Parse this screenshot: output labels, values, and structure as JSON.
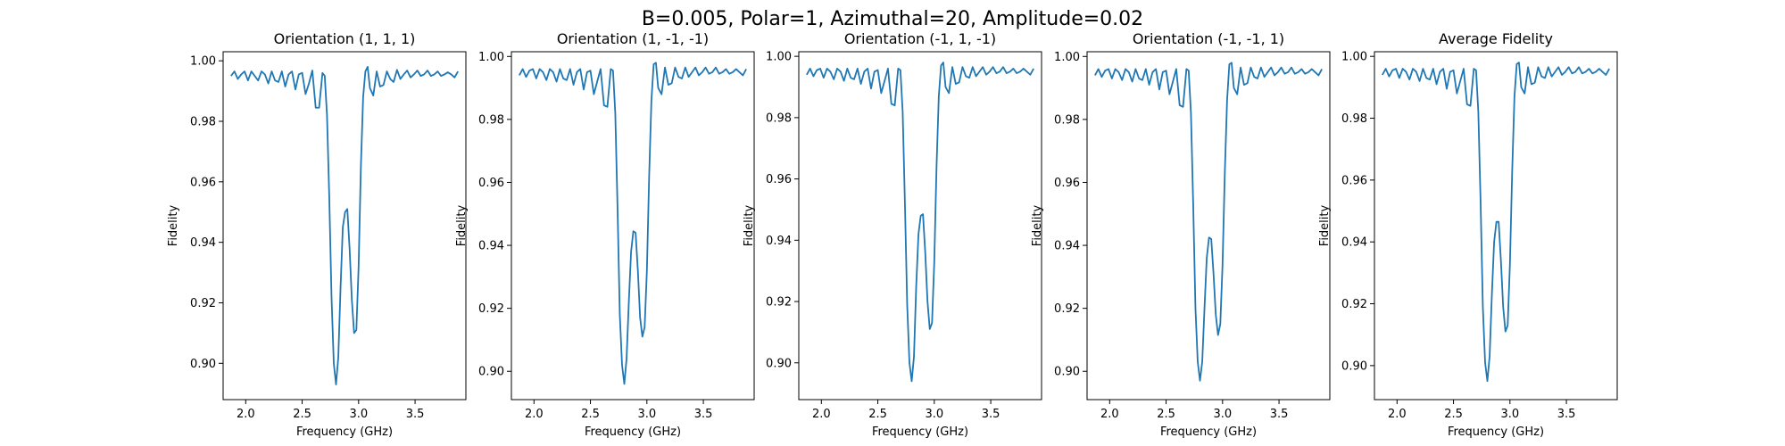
{
  "figure": {
    "suptitle": "B=0.005, Polar=1, Azimuthal=20, Amplitude=0.02"
  },
  "chart_data": [
    {
      "type": "line",
      "title": "Orientation (1, 1, 1)",
      "xlabel": "Frequency (GHz)",
      "ylabel": "Fidelity",
      "xlim": [
        1.8,
        3.95
      ],
      "ylim": [
        0.888,
        1.003
      ],
      "xticks": [
        2.0,
        2.5,
        3.0,
        3.5
      ],
      "xtick_labels": [
        "2.0",
        "2.5",
        "3.0",
        "3.5"
      ],
      "yticks": [
        0.9,
        0.92,
        0.94,
        0.96,
        0.98,
        1.0
      ],
      "ytick_labels": [
        "0.90",
        "0.92",
        "0.94",
        "0.96",
        "0.98",
        "1.00"
      ],
      "grid": false,
      "color": "#1f77b4",
      "series": [
        {
          "x": [
            1.87,
            1.9,
            1.93,
            1.96,
            1.99,
            2.02,
            2.05,
            2.08,
            2.11,
            2.14,
            2.17,
            2.2,
            2.23,
            2.26,
            2.29,
            2.32,
            2.35,
            2.38,
            2.41,
            2.44,
            2.47,
            2.5,
            2.53,
            2.56,
            2.59,
            2.62,
            2.65,
            2.68,
            2.7,
            2.72,
            2.74,
            2.76,
            2.78,
            2.8,
            2.82,
            2.84,
            2.86,
            2.88,
            2.9,
            2.92,
            2.94,
            2.96,
            2.98,
            3.0,
            3.02,
            3.04,
            3.06,
            3.08,
            3.1,
            3.13,
            3.16,
            3.19,
            3.22,
            3.25,
            3.28,
            3.31,
            3.34,
            3.37,
            3.4,
            3.43,
            3.46,
            3.49,
            3.52,
            3.55,
            3.58,
            3.61,
            3.64,
            3.67,
            3.7,
            3.73,
            3.76,
            3.79,
            3.82,
            3.85,
            3.88
          ],
          "y": [
            0.995,
            0.9965,
            0.994,
            0.9955,
            0.9965,
            0.9935,
            0.9965,
            0.995,
            0.9935,
            0.9965,
            0.9955,
            0.9925,
            0.9965,
            0.9935,
            0.993,
            0.9965,
            0.9915,
            0.9955,
            0.9965,
            0.9905,
            0.9955,
            0.996,
            0.989,
            0.9925,
            0.9968,
            0.9845,
            0.9845,
            0.996,
            0.995,
            0.982,
            0.955,
            0.922,
            0.9,
            0.893,
            0.902,
            0.925,
            0.945,
            0.95,
            0.951,
            0.938,
            0.921,
            0.91,
            0.911,
            0.932,
            0.965,
            0.988,
            0.9965,
            0.998,
            0.991,
            0.9885,
            0.9965,
            0.9915,
            0.992,
            0.9965,
            0.994,
            0.993,
            0.997,
            0.994,
            0.9955,
            0.9968,
            0.9945,
            0.9955,
            0.9968,
            0.995,
            0.9955,
            0.9968,
            0.995,
            0.9955,
            0.9965,
            0.995,
            0.9955,
            0.9962,
            0.9955,
            0.9945,
            0.9965
          ]
        }
      ]
    },
    {
      "type": "line",
      "title": "Orientation (1, -1, -1)",
      "xlabel": "Frequency (GHz)",
      "ylabel": "Fidelity",
      "xlim": [
        1.8,
        3.95
      ],
      "ylim": [
        0.891,
        1.0015
      ],
      "xticks": [
        2.0,
        2.5,
        3.0,
        3.5
      ],
      "xtick_labels": [
        "2.0",
        "2.5",
        "3.0",
        "3.5"
      ],
      "yticks": [
        0.9,
        0.92,
        0.94,
        0.96,
        0.98,
        1.0
      ],
      "ytick_labels": [
        "0.90",
        "0.92",
        "0.94",
        "0.96",
        "0.98",
        "1.00"
      ],
      "grid": false,
      "color": "#1f77b4",
      "series": [
        {
          "x": [
            1.87,
            1.9,
            1.93,
            1.96,
            1.99,
            2.02,
            2.05,
            2.08,
            2.11,
            2.14,
            2.17,
            2.2,
            2.23,
            2.26,
            2.29,
            2.32,
            2.35,
            2.38,
            2.41,
            2.44,
            2.47,
            2.5,
            2.53,
            2.56,
            2.59,
            2.62,
            2.65,
            2.68,
            2.7,
            2.72,
            2.74,
            2.76,
            2.78,
            2.8,
            2.82,
            2.84,
            2.86,
            2.88,
            2.9,
            2.92,
            2.94,
            2.96,
            2.98,
            3.0,
            3.02,
            3.04,
            3.06,
            3.08,
            3.1,
            3.13,
            3.16,
            3.19,
            3.22,
            3.25,
            3.28,
            3.31,
            3.34,
            3.37,
            3.4,
            3.43,
            3.46,
            3.49,
            3.52,
            3.55,
            3.58,
            3.61,
            3.64,
            3.67,
            3.7,
            3.73,
            3.76,
            3.79,
            3.82,
            3.85,
            3.88
          ],
          "y": [
            0.994,
            0.996,
            0.9935,
            0.9955,
            0.996,
            0.993,
            0.996,
            0.995,
            0.9925,
            0.996,
            0.995,
            0.992,
            0.996,
            0.993,
            0.9925,
            0.996,
            0.991,
            0.995,
            0.996,
            0.9895,
            0.995,
            0.9955,
            0.988,
            0.992,
            0.996,
            0.9845,
            0.984,
            0.996,
            0.9955,
            0.982,
            0.952,
            0.918,
            0.902,
            0.896,
            0.904,
            0.922,
            0.938,
            0.9445,
            0.944,
            0.932,
            0.917,
            0.911,
            0.914,
            0.932,
            0.962,
            0.986,
            0.9975,
            0.998,
            0.99,
            0.988,
            0.9965,
            0.991,
            0.9915,
            0.9965,
            0.9935,
            0.993,
            0.9965,
            0.9935,
            0.995,
            0.9965,
            0.994,
            0.995,
            0.9965,
            0.9945,
            0.995,
            0.9965,
            0.9945,
            0.995,
            0.996,
            0.9945,
            0.995,
            0.996,
            0.995,
            0.994,
            0.996
          ]
        }
      ]
    },
    {
      "type": "line",
      "title": "Orientation (-1, 1, -1)",
      "xlabel": "Frequency (GHz)",
      "ylabel": "Fidelity",
      "xlim": [
        1.8,
        3.95
      ],
      "ylim": [
        0.888,
        1.0015
      ],
      "xticks": [
        2.0,
        2.5,
        3.0,
        3.5
      ],
      "xtick_labels": [
        "2.0",
        "2.5",
        "3.0",
        "3.5"
      ],
      "yticks": [
        0.9,
        0.92,
        0.94,
        0.96,
        0.98,
        1.0
      ],
      "ytick_labels": [
        "0.90",
        "0.92",
        "0.94",
        "0.96",
        "0.98",
        "1.00"
      ],
      "grid": false,
      "color": "#1f77b4",
      "series": [
        {
          "x": [
            1.87,
            1.9,
            1.93,
            1.96,
            1.99,
            2.02,
            2.05,
            2.08,
            2.11,
            2.14,
            2.17,
            2.2,
            2.23,
            2.26,
            2.29,
            2.32,
            2.35,
            2.38,
            2.41,
            2.44,
            2.47,
            2.5,
            2.53,
            2.56,
            2.59,
            2.62,
            2.65,
            2.68,
            2.7,
            2.72,
            2.74,
            2.76,
            2.78,
            2.8,
            2.82,
            2.84,
            2.86,
            2.88,
            2.9,
            2.92,
            2.94,
            2.96,
            2.98,
            3.0,
            3.02,
            3.04,
            3.06,
            3.08,
            3.1,
            3.13,
            3.16,
            3.19,
            3.22,
            3.25,
            3.28,
            3.31,
            3.34,
            3.37,
            3.4,
            3.43,
            3.46,
            3.49,
            3.52,
            3.55,
            3.58,
            3.61,
            3.64,
            3.67,
            3.7,
            3.73,
            3.76,
            3.79,
            3.82,
            3.85,
            3.88
          ],
          "y": [
            0.994,
            0.996,
            0.9935,
            0.9955,
            0.996,
            0.993,
            0.996,
            0.995,
            0.9925,
            0.996,
            0.995,
            0.992,
            0.996,
            0.993,
            0.9925,
            0.996,
            0.991,
            0.995,
            0.996,
            0.9895,
            0.995,
            0.9955,
            0.988,
            0.992,
            0.996,
            0.9845,
            0.984,
            0.996,
            0.9955,
            0.982,
            0.952,
            0.919,
            0.9,
            0.894,
            0.902,
            0.925,
            0.942,
            0.948,
            0.9485,
            0.936,
            0.92,
            0.911,
            0.913,
            0.933,
            0.964,
            0.987,
            0.997,
            0.998,
            0.99,
            0.988,
            0.9965,
            0.991,
            0.9915,
            0.9965,
            0.9935,
            0.993,
            0.9965,
            0.9935,
            0.995,
            0.9965,
            0.994,
            0.995,
            0.9965,
            0.9945,
            0.995,
            0.9965,
            0.9945,
            0.995,
            0.996,
            0.9945,
            0.995,
            0.996,
            0.995,
            0.994,
            0.996
          ]
        }
      ]
    },
    {
      "type": "line",
      "title": "Orientation (-1, -1, 1)",
      "xlabel": "Frequency (GHz)",
      "ylabel": "Fidelity",
      "xlim": [
        1.8,
        3.95
      ],
      "ylim": [
        0.891,
        1.0015
      ],
      "xticks": [
        2.0,
        2.5,
        3.0,
        3.5
      ],
      "xtick_labels": [
        "2.0",
        "2.5",
        "3.0",
        "3.5"
      ],
      "yticks": [
        0.9,
        0.92,
        0.94,
        0.96,
        0.98,
        1.0
      ],
      "ytick_labels": [
        "0.90",
        "0.92",
        "0.94",
        "0.96",
        "0.98",
        "1.00"
      ],
      "grid": false,
      "color": "#1f77b4",
      "series": [
        {
          "x": [
            1.87,
            1.9,
            1.93,
            1.96,
            1.99,
            2.02,
            2.05,
            2.08,
            2.11,
            2.14,
            2.17,
            2.2,
            2.23,
            2.26,
            2.29,
            2.32,
            2.35,
            2.38,
            2.41,
            2.44,
            2.47,
            2.5,
            2.53,
            2.56,
            2.59,
            2.62,
            2.65,
            2.68,
            2.7,
            2.72,
            2.74,
            2.76,
            2.78,
            2.8,
            2.82,
            2.84,
            2.86,
            2.88,
            2.9,
            2.92,
            2.94,
            2.96,
            2.98,
            3.0,
            3.02,
            3.04,
            3.06,
            3.08,
            3.1,
            3.13,
            3.16,
            3.19,
            3.22,
            3.25,
            3.28,
            3.31,
            3.34,
            3.37,
            3.4,
            3.43,
            3.46,
            3.49,
            3.52,
            3.55,
            3.58,
            3.61,
            3.64,
            3.67,
            3.7,
            3.73,
            3.76,
            3.79,
            3.82,
            3.85,
            3.88
          ],
          "y": [
            0.994,
            0.996,
            0.9935,
            0.9955,
            0.996,
            0.993,
            0.996,
            0.995,
            0.9925,
            0.996,
            0.995,
            0.992,
            0.996,
            0.993,
            0.9925,
            0.996,
            0.991,
            0.995,
            0.996,
            0.9895,
            0.995,
            0.9955,
            0.988,
            0.992,
            0.996,
            0.9845,
            0.984,
            0.996,
            0.9955,
            0.982,
            0.953,
            0.92,
            0.903,
            0.897,
            0.903,
            0.92,
            0.936,
            0.9425,
            0.942,
            0.931,
            0.918,
            0.9115,
            0.915,
            0.934,
            0.963,
            0.986,
            0.9975,
            0.998,
            0.99,
            0.988,
            0.9965,
            0.991,
            0.9915,
            0.9965,
            0.9935,
            0.993,
            0.9965,
            0.9935,
            0.995,
            0.9965,
            0.994,
            0.995,
            0.9965,
            0.9945,
            0.995,
            0.9965,
            0.9945,
            0.995,
            0.996,
            0.9945,
            0.995,
            0.996,
            0.995,
            0.994,
            0.996
          ]
        }
      ]
    },
    {
      "type": "line",
      "title": "Average Fidelity",
      "xlabel": "Frequency (GHz)",
      "ylabel": "Fidelity",
      "xlim": [
        1.8,
        3.95
      ],
      "ylim": [
        0.889,
        1.0015
      ],
      "xticks": [
        2.0,
        2.5,
        3.0,
        3.5
      ],
      "xtick_labels": [
        "2.0",
        "2.5",
        "3.0",
        "3.5"
      ],
      "yticks": [
        0.9,
        0.92,
        0.94,
        0.96,
        0.98,
        1.0
      ],
      "ytick_labels": [
        "0.90",
        "0.92",
        "0.94",
        "0.96",
        "0.98",
        "1.00"
      ],
      "grid": false,
      "color": "#1f77b4",
      "series": [
        {
          "x": [
            1.87,
            1.9,
            1.93,
            1.96,
            1.99,
            2.02,
            2.05,
            2.08,
            2.11,
            2.14,
            2.17,
            2.2,
            2.23,
            2.26,
            2.29,
            2.32,
            2.35,
            2.38,
            2.41,
            2.44,
            2.47,
            2.5,
            2.53,
            2.56,
            2.59,
            2.62,
            2.65,
            2.68,
            2.7,
            2.72,
            2.74,
            2.76,
            2.78,
            2.8,
            2.82,
            2.84,
            2.86,
            2.88,
            2.9,
            2.92,
            2.94,
            2.96,
            2.98,
            3.0,
            3.02,
            3.04,
            3.06,
            3.08,
            3.1,
            3.13,
            3.16,
            3.19,
            3.22,
            3.25,
            3.28,
            3.31,
            3.34,
            3.37,
            3.4,
            3.43,
            3.46,
            3.49,
            3.52,
            3.55,
            3.58,
            3.61,
            3.64,
            3.67,
            3.7,
            3.73,
            3.76,
            3.79,
            3.82,
            3.85,
            3.88
          ],
          "y": [
            0.994,
            0.996,
            0.9935,
            0.9955,
            0.996,
            0.993,
            0.996,
            0.995,
            0.9925,
            0.996,
            0.995,
            0.992,
            0.996,
            0.993,
            0.9925,
            0.996,
            0.991,
            0.995,
            0.996,
            0.9895,
            0.995,
            0.9955,
            0.988,
            0.992,
            0.996,
            0.9845,
            0.984,
            0.996,
            0.9955,
            0.982,
            0.953,
            0.919,
            0.901,
            0.895,
            0.903,
            0.923,
            0.94,
            0.9465,
            0.9465,
            0.934,
            0.919,
            0.911,
            0.913,
            0.933,
            0.963,
            0.987,
            0.9975,
            0.998,
            0.99,
            0.988,
            0.9965,
            0.991,
            0.9915,
            0.9965,
            0.9935,
            0.993,
            0.9965,
            0.9935,
            0.995,
            0.9965,
            0.994,
            0.995,
            0.9965,
            0.9945,
            0.995,
            0.9965,
            0.9945,
            0.995,
            0.996,
            0.9945,
            0.995,
            0.996,
            0.995,
            0.994,
            0.996
          ]
        }
      ]
    }
  ]
}
